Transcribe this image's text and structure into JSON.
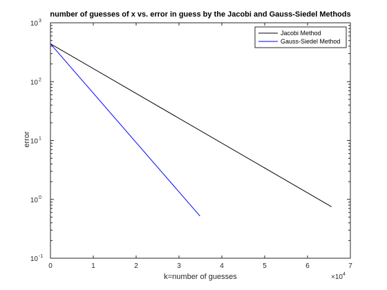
{
  "chart_data": {
    "type": "line",
    "title": "number of guesses of x vs. error in guess by the Jacobi and Gauss-Siedel Methods",
    "xlabel": "k=number of guesses",
    "ylabel": "error",
    "x_multiplier_label": {
      "base": "×10",
      "exponent": "4"
    },
    "xlim": [
      0,
      70000
    ],
    "ylim": [
      0.1,
      1000
    ],
    "yscale": "log",
    "x_ticks": [
      0,
      10000,
      20000,
      30000,
      40000,
      50000,
      60000,
      70000
    ],
    "x_tick_labels": [
      "0",
      "1",
      "2",
      "3",
      "4",
      "5",
      "6",
      "7"
    ],
    "y_ticks": [
      0.1,
      1,
      10,
      100,
      1000
    ],
    "y_tick_labels": [
      {
        "base": "10",
        "exp": "-1"
      },
      {
        "base": "10",
        "exp": "0"
      },
      {
        "base": "10",
        "exp": "1"
      },
      {
        "base": "10",
        "exp": "2"
      },
      {
        "base": "10",
        "exp": "3"
      }
    ],
    "grid": false,
    "legend_position": "top-right",
    "series": [
      {
        "name": "Jacobi Method",
        "color": "#000000",
        "x": [
          0,
          65600
        ],
        "y": [
          440,
          0.75
        ]
      },
      {
        "name": "Gauss-Siedel Method",
        "color": "#0000ff",
        "x": [
          0,
          34900
        ],
        "y": [
          440,
          0.52
        ]
      }
    ]
  }
}
